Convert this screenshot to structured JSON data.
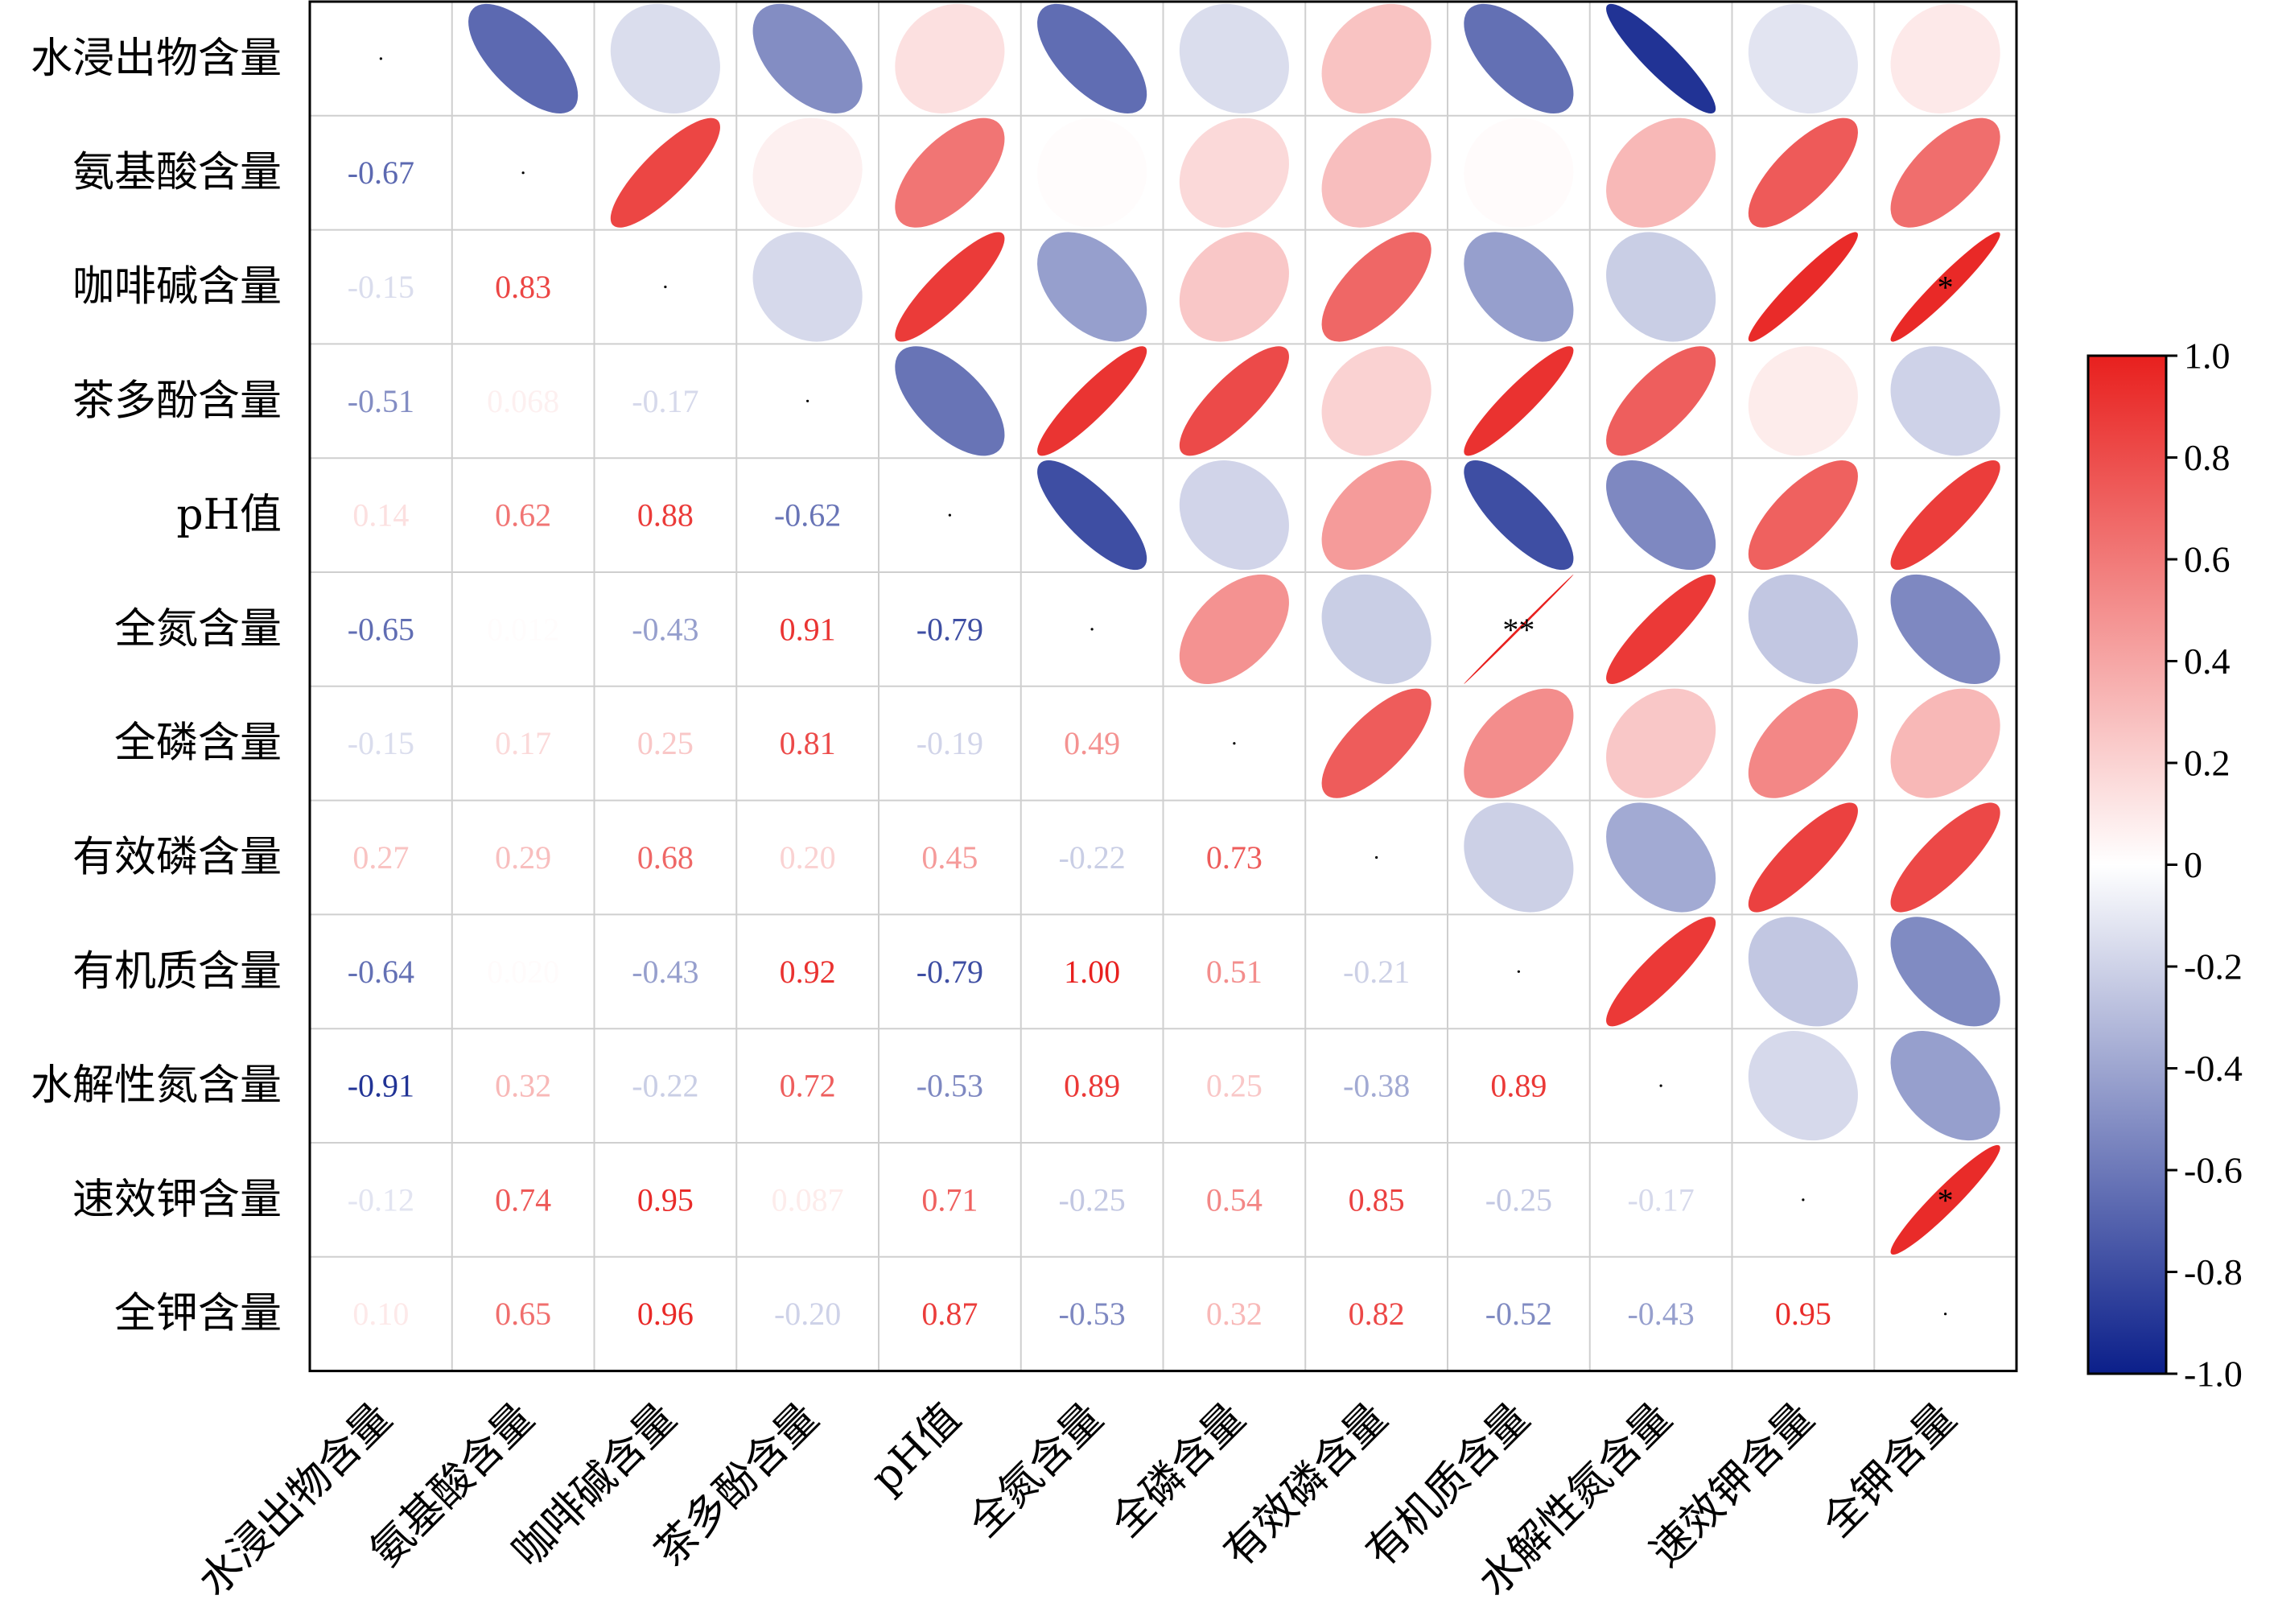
{
  "chart_data": {
    "type": "heatmap",
    "subtype": "correlation-matrix",
    "title": "",
    "variables": [
      "水浸出物含量",
      "氨基酸含量",
      "咖啡碱含量",
      "茶多酚含量",
      "pH值",
      "全氮含量",
      "全磷含量",
      "有效磷含量",
      "有机质含量",
      "水解性氮含量",
      "速效钾含量",
      "全钾含量"
    ],
    "lower_triangle_labels": [
      [],
      [
        "-0.67"
      ],
      [
        "-0.15",
        "0.83"
      ],
      [
        "-0.51",
        "0.068",
        "-0.17"
      ],
      [
        "0.14",
        "0.62",
        "0.88",
        "-0.62"
      ],
      [
        "-0.65",
        "0.012",
        "-0.43",
        "0.91",
        "-0.79"
      ],
      [
        "-0.15",
        "0.17",
        "0.25",
        "0.81",
        "-0.19",
        "0.49"
      ],
      [
        "0.27",
        "0.29",
        "0.68",
        "0.20",
        "0.45",
        "-0.22",
        "0.73"
      ],
      [
        "-0.64",
        "0.020",
        "-0.43",
        "0.92",
        "-0.79",
        "1.00",
        "0.51",
        "-0.21"
      ],
      [
        "-0.91",
        "0.32",
        "-0.22",
        "0.72",
        "-0.53",
        "0.89",
        "0.25",
        "-0.38",
        "0.89"
      ],
      [
        "-0.12",
        "0.74",
        "0.95",
        "0.087",
        "0.71",
        "-0.25",
        "0.54",
        "0.85",
        "-0.25",
        "-0.17"
      ],
      [
        "0.10",
        "0.65",
        "0.96",
        "-0.20",
        "0.87",
        "-0.53",
        "0.32",
        "0.82",
        "-0.52",
        "-0.43",
        "0.95"
      ]
    ],
    "significance": [
      {
        "row": "咖啡碱含量",
        "col": "全钾含量",
        "mark": "*"
      },
      {
        "row": "全氮含量",
        "col": "有机质含量",
        "mark": "**"
      },
      {
        "row": "速效钾含量",
        "col": "全钾含量",
        "mark": "*"
      }
    ],
    "colorbar": {
      "range": [
        -1.0,
        1.0
      ],
      "ticks": [
        "1.0",
        "0.8",
        "0.6",
        "0.4",
        "0.2",
        "0",
        "-0.2",
        "-0.4",
        "-0.6",
        "-0.8",
        "-1.0"
      ],
      "colors": [
        "#0b1f8a",
        "#ffffff",
        "#e8201e"
      ]
    }
  }
}
